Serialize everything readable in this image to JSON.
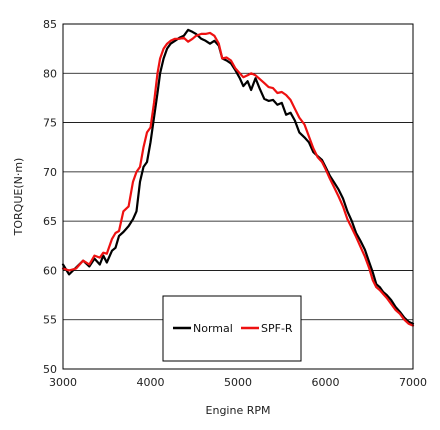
{
  "chart_data": {
    "type": "line",
    "xlabel": "Engine RPM",
    "ylabel": "TORQUE(N·m)",
    "xlim": [
      3000,
      7000
    ],
    "ylim": [
      50,
      85
    ],
    "xticks": [
      3000,
      4000,
      5000,
      6000,
      7000
    ],
    "yticks": [
      50,
      55,
      60,
      65,
      70,
      75,
      80,
      85
    ],
    "grid": "horizontal",
    "legend_position": "bottom-center",
    "series": [
      {
        "name": "Normal",
        "color": "#000000",
        "x": [
          3000,
          3070,
          3150,
          3230,
          3300,
          3360,
          3420,
          3460,
          3500,
          3560,
          3600,
          3640,
          3690,
          3750,
          3800,
          3840,
          3880,
          3920,
          3960,
          4000,
          4040,
          4080,
          4110,
          4150,
          4190,
          4230,
          4280,
          4330,
          4380,
          4430,
          4480,
          4520,
          4580,
          4630,
          4680,
          4730,
          4780,
          4820,
          4870,
          4920,
          4970,
          5020,
          5060,
          5110,
          5150,
          5200,
          5250,
          5300,
          5350,
          5400,
          5450,
          5500,
          5550,
          5600,
          5650,
          5700,
          5760,
          5810,
          5860,
          5910,
          5960,
          6000,
          6050,
          6100,
          6150,
          6200,
          6250,
          6300,
          6350,
          6400,
          6450,
          6500,
          6540,
          6580,
          6620,
          6660,
          6700,
          6750,
          6800,
          6850,
          6900,
          6950,
          7000
        ],
        "values": [
          60.6,
          59.6,
          60.3,
          61.0,
          60.4,
          61.2,
          60.6,
          61.5,
          60.8,
          62.0,
          62.3,
          63.5,
          63.9,
          64.5,
          65.2,
          66.0,
          69.0,
          70.5,
          71.0,
          73.0,
          75.5,
          78.0,
          80.0,
          81.5,
          82.5,
          83.0,
          83.3,
          83.6,
          83.8,
          84.4,
          84.2,
          84.0,
          83.5,
          83.3,
          83.0,
          83.3,
          82.8,
          81.5,
          81.3,
          81.0,
          80.3,
          79.5,
          78.7,
          79.2,
          78.3,
          79.5,
          78.4,
          77.4,
          77.2,
          77.3,
          76.8,
          77.0,
          75.8,
          76.0,
          75.2,
          74.0,
          73.5,
          73.0,
          72.0,
          71.6,
          71.2,
          70.5,
          69.6,
          68.9,
          68.2,
          67.3,
          66.0,
          65.0,
          63.8,
          63.0,
          62.1,
          60.8,
          59.8,
          58.6,
          58.3,
          57.8,
          57.5,
          57.0,
          56.3,
          55.8,
          55.2,
          54.8,
          54.6
        ]
      },
      {
        "name": "SPF-R",
        "color": "#ee1111",
        "x": [
          3000,
          3070,
          3150,
          3230,
          3300,
          3360,
          3420,
          3460,
          3500,
          3560,
          3600,
          3640,
          3690,
          3750,
          3800,
          3840,
          3880,
          3920,
          3960,
          4000,
          4040,
          4080,
          4110,
          4150,
          4190,
          4230,
          4280,
          4330,
          4380,
          4430,
          4480,
          4520,
          4580,
          4630,
          4680,
          4730,
          4780,
          4820,
          4870,
          4920,
          4970,
          5020,
          5060,
          5110,
          5150,
          5200,
          5250,
          5300,
          5350,
          5400,
          5450,
          5500,
          5550,
          5600,
          5650,
          5700,
          5760,
          5810,
          5860,
          5910,
          5960,
          6000,
          6050,
          6100,
          6150,
          6200,
          6250,
          6300,
          6350,
          6400,
          6450,
          6500,
          6540,
          6580,
          6620,
          6660,
          6700,
          6750,
          6800,
          6850,
          6900,
          6950,
          7000
        ],
        "values": [
          60.2,
          60.0,
          60.2,
          61.0,
          60.6,
          61.5,
          61.3,
          61.8,
          61.7,
          63.2,
          63.8,
          64.0,
          66.0,
          66.5,
          69.0,
          70.0,
          70.5,
          72.5,
          74.0,
          74.5,
          77.0,
          80.0,
          81.5,
          82.5,
          83.0,
          83.3,
          83.5,
          83.5,
          83.6,
          83.2,
          83.5,
          83.8,
          84.0,
          84.0,
          84.1,
          83.8,
          83.0,
          81.5,
          81.6,
          81.3,
          80.5,
          80.0,
          79.6,
          79.8,
          80.0,
          79.8,
          79.4,
          79.0,
          78.6,
          78.5,
          78.0,
          78.1,
          77.8,
          77.3,
          76.4,
          75.5,
          74.8,
          73.6,
          72.4,
          71.5,
          71.0,
          70.3,
          69.3,
          68.4,
          67.5,
          66.5,
          65.2,
          64.3,
          63.4,
          62.4,
          61.4,
          60.2,
          59.0,
          58.3,
          58.0,
          57.6,
          57.2,
          56.6,
          56.0,
          55.6,
          55.0,
          54.6,
          54.4
        ]
      }
    ]
  }
}
